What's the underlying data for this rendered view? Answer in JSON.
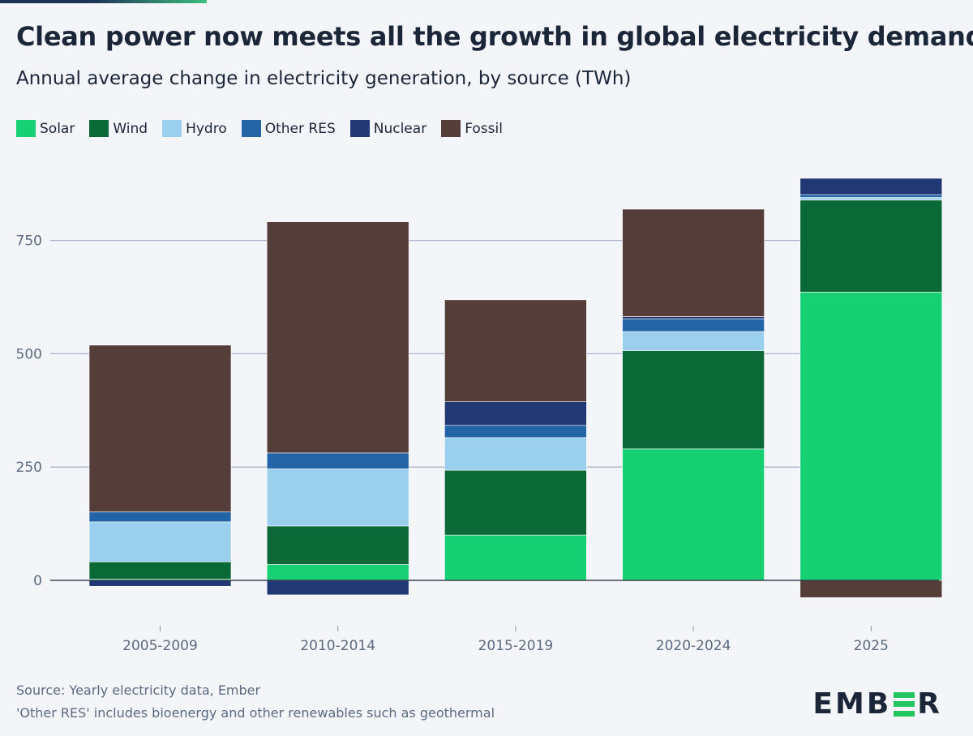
{
  "title": "Clean power now meets all the growth in global electricity demand",
  "subtitle": "Annual average change in electricity generation, by source (TWh)",
  "footer": {
    "source": "Source: Yearly electricity data, Ember",
    "note": "'Other RES' includes bioenergy and other renewables such as geothermal"
  },
  "logo": {
    "left": "EMB",
    "right": "R",
    "mark": "E"
  },
  "chart_data": {
    "type": "bar",
    "stacked": true,
    "categories": [
      "2005-2009",
      "2010-2014",
      "2015-2019",
      "2020-2024",
      "2025"
    ],
    "ylim": [
      -50,
      900
    ],
    "yticks": [
      0,
      250,
      500,
      750
    ],
    "grid": true,
    "legend_position": "top-left",
    "series": [
      {
        "name": "Solar",
        "color": "#17d073",
        "values": [
          3,
          35,
          100,
          290,
          636
        ]
      },
      {
        "name": "Wind",
        "color": "#0b6837",
        "values": [
          38,
          85,
          143,
          217,
          203
        ]
      },
      {
        "name": "Hydro",
        "color": "#9bcfee",
        "values": [
          88,
          126,
          72,
          42,
          6
        ]
      },
      {
        "name": "Other RES",
        "color": "#2264a6",
        "values": [
          22,
          35,
          27,
          28,
          6
        ]
      },
      {
        "name": "Nuclear",
        "color": "#213875",
        "values": [
          -13,
          -32,
          52,
          5,
          36
        ]
      },
      {
        "name": "Fossil",
        "color": "#553d3a",
        "values": [
          368,
          510,
          225,
          237,
          -38
        ]
      }
    ]
  }
}
